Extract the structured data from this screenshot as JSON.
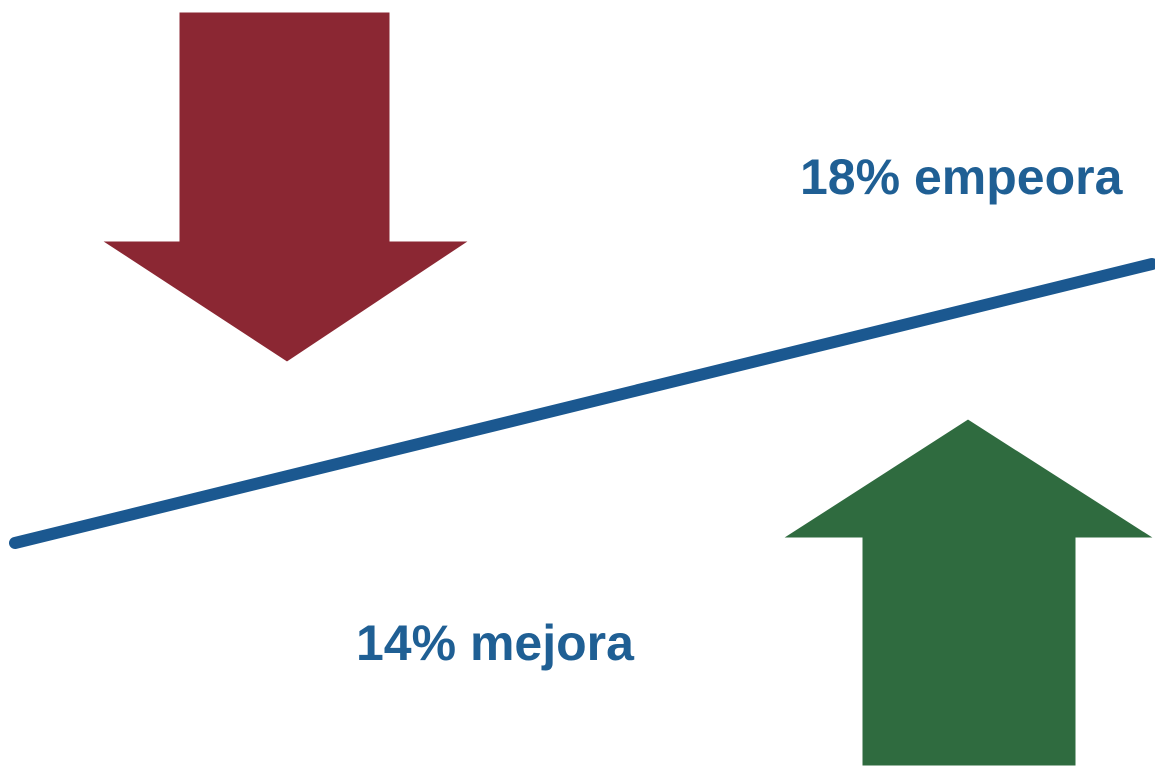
{
  "labels": {
    "worse": "18% empeora",
    "better": "14% mejora"
  },
  "icons": {
    "down_arrow": "down-arrow-icon",
    "up_arrow": "up-arrow-icon",
    "trend_line": "trend-line"
  },
  "colors": {
    "down_arrow": "#8b2733",
    "up_arrow": "#2f6b3f",
    "line": "#1b5890",
    "text": "#1f5f94"
  }
}
